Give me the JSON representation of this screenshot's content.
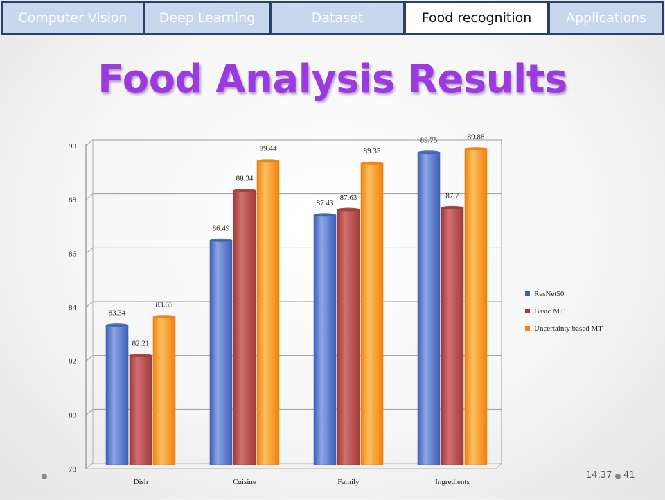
{
  "nav": {
    "tabs": [
      {
        "label": "Computer Vision"
      },
      {
        "label": "Deep Learning"
      },
      {
        "label": "Dataset"
      },
      {
        "label": "Food recognition"
      },
      {
        "label": "Applications"
      }
    ],
    "active_tab": "Food recognition"
  },
  "slide": {
    "title": "Food Analysis Results",
    "time": "14:37",
    "page_number": "41"
  },
  "colors": {
    "tab_border": "#2b3f6c",
    "tab_fill": "#c8d6ee",
    "title": "#9a3ae0",
    "resnet": "#3f5fb5",
    "basic_mt": "#a23a3a",
    "uncertainty_mt": "#f08010"
  },
  "chart_data": {
    "type": "bar",
    "categories": [
      "Dish",
      "Cuisine",
      "Family",
      "Ingredients"
    ],
    "series": [
      {
        "name": "ResNet50",
        "values": [
          83.34,
          86.49,
          87.43,
          89.75
        ]
      },
      {
        "name": "Basic MT",
        "values": [
          82.21,
          88.34,
          87.63,
          87.7
        ]
      },
      {
        "name": "Uncertainty based MT",
        "values": [
          83.65,
          89.44,
          89.35,
          89.88
        ]
      }
    ],
    "title": "",
    "xlabel": "",
    "ylabel": "",
    "ylim": [
      78,
      90
    ],
    "yticks": [
      78,
      80,
      82,
      84,
      86,
      88,
      90
    ],
    "grid": true,
    "legend": "right"
  }
}
